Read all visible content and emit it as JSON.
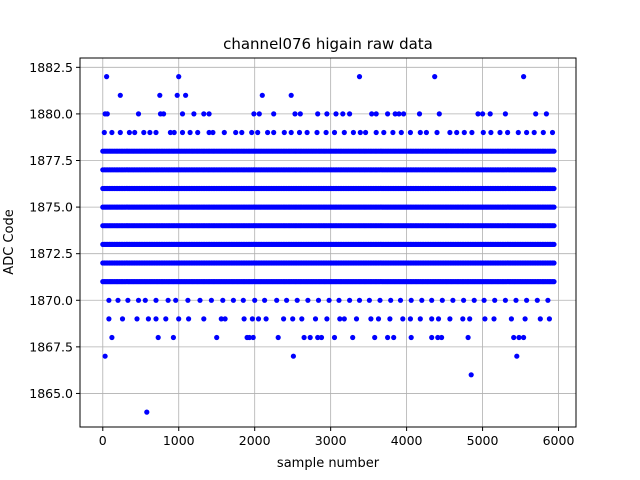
{
  "chart_data": {
    "type": "scatter",
    "title": "channel076 higain raw data",
    "xlabel": "sample number",
    "ylabel": "ADC Code",
    "xlim": [
      -300,
      6230
    ],
    "ylim": [
      1863.2,
      1883.0
    ],
    "xticks": [
      0,
      1000,
      2000,
      3000,
      4000,
      5000,
      6000
    ],
    "xtick_labels": [
      "0",
      "1000",
      "2000",
      "3000",
      "4000",
      "5000",
      "6000"
    ],
    "yticks": [
      1865.0,
      1867.5,
      1870.0,
      1872.5,
      1875.0,
      1877.5,
      1880.0,
      1882.5
    ],
    "ytick_labels": [
      "1865.0",
      "1867.5",
      "1870.0",
      "1872.5",
      "1875.0",
      "1877.5",
      "1880.0",
      "1882.5"
    ],
    "grid": true,
    "legend": "none",
    "marker_color": "#0000ff",
    "series": [
      {
        "dense_levels": [
          1871,
          1872,
          1873,
          1874,
          1875,
          1876,
          1877,
          1878
        ],
        "dense_x_range": [
          0,
          5950
        ],
        "points": [
          [
            50,
            1882
          ],
          [
            1000,
            1882
          ],
          [
            3380,
            1882
          ],
          [
            4370,
            1882
          ],
          [
            5540,
            1882
          ],
          [
            230,
            1881
          ],
          [
            750,
            1881
          ],
          [
            980,
            1881
          ],
          [
            1090,
            1881
          ],
          [
            2100,
            1881
          ],
          [
            2480,
            1881
          ],
          [
            30,
            1880
          ],
          [
            60,
            1880
          ],
          [
            470,
            1880
          ],
          [
            760,
            1880
          ],
          [
            800,
            1880
          ],
          [
            1050,
            1880
          ],
          [
            1200,
            1880
          ],
          [
            1330,
            1880
          ],
          [
            1400,
            1880
          ],
          [
            1990,
            1880
          ],
          [
            2060,
            1880
          ],
          [
            2250,
            1880
          ],
          [
            2530,
            1880
          ],
          [
            2600,
            1880
          ],
          [
            2830,
            1880
          ],
          [
            2950,
            1880
          ],
          [
            3070,
            1880
          ],
          [
            3160,
            1880
          ],
          [
            3250,
            1880
          ],
          [
            3540,
            1880
          ],
          [
            3600,
            1880
          ],
          [
            3750,
            1880
          ],
          [
            3850,
            1880
          ],
          [
            3900,
            1880
          ],
          [
            3960,
            1880
          ],
          [
            4170,
            1880
          ],
          [
            4430,
            1880
          ],
          [
            4940,
            1880
          ],
          [
            5000,
            1880
          ],
          [
            5100,
            1880
          ],
          [
            5300,
            1880
          ],
          [
            5700,
            1880
          ],
          [
            5840,
            1880
          ],
          [
            20,
            1879
          ],
          [
            120,
            1879
          ],
          [
            230,
            1879
          ],
          [
            350,
            1879
          ],
          [
            420,
            1879
          ],
          [
            540,
            1879
          ],
          [
            620,
            1879
          ],
          [
            700,
            1879
          ],
          [
            890,
            1879
          ],
          [
            940,
            1879
          ],
          [
            1050,
            1879
          ],
          [
            1150,
            1879
          ],
          [
            1250,
            1879
          ],
          [
            1400,
            1879
          ],
          [
            1450,
            1879
          ],
          [
            1600,
            1879
          ],
          [
            1750,
            1879
          ],
          [
            1830,
            1879
          ],
          [
            1960,
            1879
          ],
          [
            2040,
            1879
          ],
          [
            2170,
            1879
          ],
          [
            2250,
            1879
          ],
          [
            2390,
            1879
          ],
          [
            2480,
            1879
          ],
          [
            2590,
            1879
          ],
          [
            2690,
            1879
          ],
          [
            2820,
            1879
          ],
          [
            2940,
            1879
          ],
          [
            3050,
            1879
          ],
          [
            3180,
            1879
          ],
          [
            3300,
            1879
          ],
          [
            3390,
            1879
          ],
          [
            3460,
            1879
          ],
          [
            3600,
            1879
          ],
          [
            3700,
            1879
          ],
          [
            3820,
            1879
          ],
          [
            3930,
            1879
          ],
          [
            4050,
            1879
          ],
          [
            4180,
            1879
          ],
          [
            4260,
            1879
          ],
          [
            4400,
            1879
          ],
          [
            4570,
            1879
          ],
          [
            4660,
            1879
          ],
          [
            4760,
            1879
          ],
          [
            4860,
            1879
          ],
          [
            5010,
            1879
          ],
          [
            5110,
            1879
          ],
          [
            5230,
            1879
          ],
          [
            5330,
            1879
          ],
          [
            5470,
            1879
          ],
          [
            5580,
            1879
          ],
          [
            5680,
            1879
          ],
          [
            5800,
            1879
          ],
          [
            5920,
            1879
          ],
          [
            80,
            1870
          ],
          [
            200,
            1870
          ],
          [
            330,
            1870
          ],
          [
            470,
            1870
          ],
          [
            560,
            1870
          ],
          [
            700,
            1870
          ],
          [
            860,
            1870
          ],
          [
            960,
            1870
          ],
          [
            1120,
            1870
          ],
          [
            1280,
            1870
          ],
          [
            1430,
            1870
          ],
          [
            1580,
            1870
          ],
          [
            1720,
            1870
          ],
          [
            1850,
            1870
          ],
          [
            2000,
            1870
          ],
          [
            2130,
            1870
          ],
          [
            2290,
            1870
          ],
          [
            2420,
            1870
          ],
          [
            2560,
            1870
          ],
          [
            2700,
            1870
          ],
          [
            2840,
            1870
          ],
          [
            2980,
            1870
          ],
          [
            3110,
            1870
          ],
          [
            3250,
            1870
          ],
          [
            3380,
            1870
          ],
          [
            3510,
            1870
          ],
          [
            3650,
            1870
          ],
          [
            3790,
            1870
          ],
          [
            3920,
            1870
          ],
          [
            4060,
            1870
          ],
          [
            4200,
            1870
          ],
          [
            4330,
            1870
          ],
          [
            4470,
            1870
          ],
          [
            4610,
            1870
          ],
          [
            4750,
            1870
          ],
          [
            4890,
            1870
          ],
          [
            5020,
            1870
          ],
          [
            5160,
            1870
          ],
          [
            5300,
            1870
          ],
          [
            5440,
            1870
          ],
          [
            5580,
            1870
          ],
          [
            5720,
            1870
          ],
          [
            5860,
            1870
          ],
          [
            80,
            1869
          ],
          [
            260,
            1869
          ],
          [
            450,
            1869
          ],
          [
            600,
            1869
          ],
          [
            700,
            1869
          ],
          [
            830,
            1869
          ],
          [
            1000,
            1869
          ],
          [
            1130,
            1869
          ],
          [
            1330,
            1869
          ],
          [
            1560,
            1869
          ],
          [
            1610,
            1869
          ],
          [
            1860,
            1869
          ],
          [
            1970,
            1869
          ],
          [
            2050,
            1869
          ],
          [
            2150,
            1869
          ],
          [
            2380,
            1869
          ],
          [
            2500,
            1869
          ],
          [
            2620,
            1869
          ],
          [
            2800,
            1869
          ],
          [
            2950,
            1869
          ],
          [
            3120,
            1869
          ],
          [
            3180,
            1869
          ],
          [
            3340,
            1869
          ],
          [
            3530,
            1869
          ],
          [
            3630,
            1869
          ],
          [
            3780,
            1869
          ],
          [
            3950,
            1869
          ],
          [
            4050,
            1869
          ],
          [
            4180,
            1869
          ],
          [
            4330,
            1869
          ],
          [
            4420,
            1869
          ],
          [
            4570,
            1869
          ],
          [
            4740,
            1869
          ],
          [
            4830,
            1869
          ],
          [
            5030,
            1869
          ],
          [
            5150,
            1869
          ],
          [
            5380,
            1869
          ],
          [
            5560,
            1869
          ],
          [
            5760,
            1869
          ],
          [
            5880,
            1869
          ],
          [
            120,
            1868
          ],
          [
            730,
            1868
          ],
          [
            930,
            1868
          ],
          [
            1500,
            1868
          ],
          [
            1900,
            1868
          ],
          [
            1930,
            1868
          ],
          [
            1980,
            1868
          ],
          [
            2310,
            1868
          ],
          [
            2650,
            1868
          ],
          [
            2730,
            1868
          ],
          [
            2830,
            1868
          ],
          [
            2880,
            1868
          ],
          [
            3050,
            1868
          ],
          [
            3290,
            1868
          ],
          [
            3580,
            1868
          ],
          [
            3750,
            1868
          ],
          [
            3830,
            1868
          ],
          [
            4060,
            1868
          ],
          [
            4330,
            1868
          ],
          [
            4410,
            1868
          ],
          [
            4460,
            1868
          ],
          [
            4810,
            1868
          ],
          [
            5410,
            1868
          ],
          [
            5480,
            1868
          ],
          [
            5540,
            1868
          ],
          [
            30,
            1867
          ],
          [
            2510,
            1867
          ],
          [
            5450,
            1867
          ],
          [
            4850,
            1866
          ],
          [
            580,
            1864
          ]
        ]
      }
    ]
  }
}
